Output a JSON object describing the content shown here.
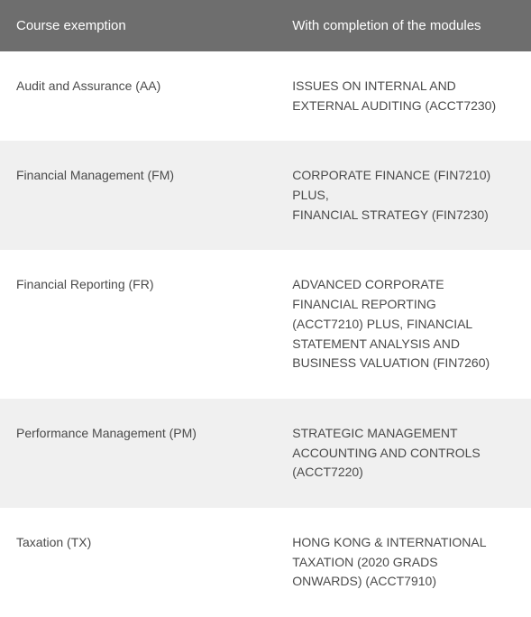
{
  "table": {
    "header": {
      "col1": "Course exemption",
      "col2": "With completion of the modules"
    },
    "rows": [
      {
        "course": "Audit and Assurance (AA)",
        "modules": "ISSUES ON INTERNAL AND EXTERNAL AUDITING (ACCT7230)"
      },
      {
        "course": "Financial Management (FM)",
        "modules": "CORPORATE FINANCE (FIN7210) PLUS,\nFINANCIAL STRATEGY (FIN7230)"
      },
      {
        "course": "Financial Reporting (FR)",
        "modules": "ADVANCED CORPORATE FINANCIAL REPORTING (ACCT7210) PLUS, FINANCIAL STATEMENT ANALYSIS AND BUSINESS VALUATION (FIN7260)"
      },
      {
        "course": "Performance Management (PM)",
        "modules": "STRATEGIC MANAGEMENT ACCOUNTING AND CONTROLS (ACCT7220)"
      },
      {
        "course": "Taxation (TX)",
        "modules": "HONG KONG & INTERNATIONAL TAXATION (2020 GRADS ONWARDS) (ACCT7910)"
      }
    ],
    "colors": {
      "header_bg": "#6e6e6e",
      "header_text": "#ffffff",
      "row_odd_bg": "#ffffff",
      "row_even_bg": "#f0f0f0",
      "body_text": "#4a4a4a"
    },
    "font_sizes": {
      "header": 15,
      "body": 14
    }
  }
}
